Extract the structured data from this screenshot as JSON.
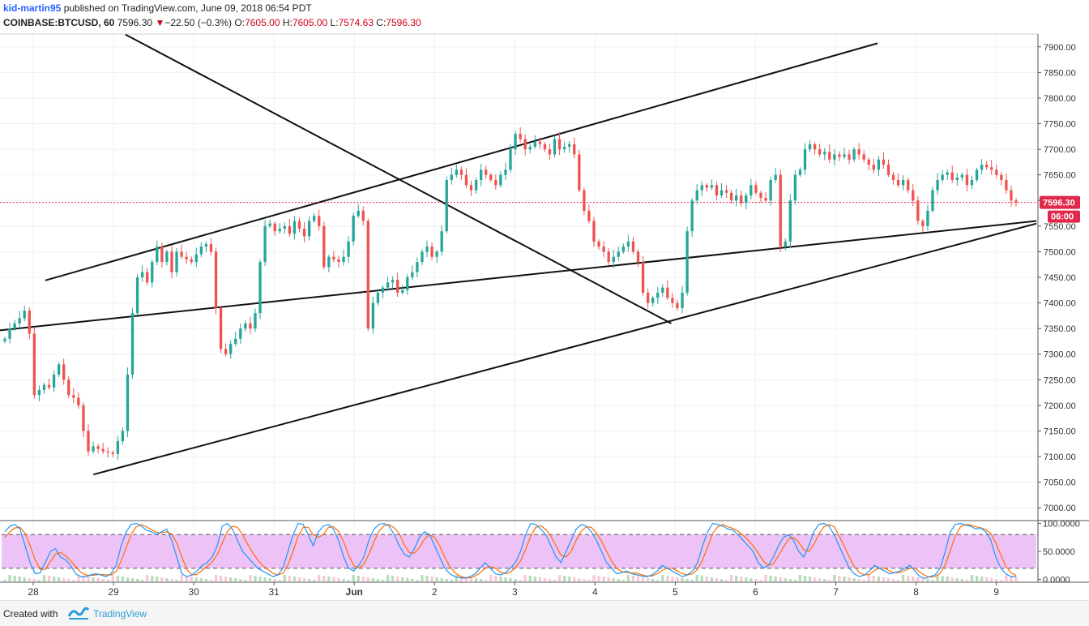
{
  "header": {
    "author": "kid-martin95",
    "published_text": "published on TradingView.com, June 09, 2018 06:54 PDT",
    "symbol": "COINBASE:BTCUSD, 60",
    "last": "7596.30",
    "change_arrow": "▼",
    "change": "−22.50 (−0.3%)",
    "o_label": "O:",
    "o_value": "7605.00",
    "h_label": "H:",
    "h_value": "7605.00",
    "l_label": "L:",
    "l_value": "7574.63",
    "c_label": "C:",
    "c_value": "7596.30"
  },
  "footer": {
    "created_with": "Created with",
    "brand": "TradingView"
  },
  "colors": {
    "up": "#26a69a",
    "down": "#ef5350",
    "stoch_k": "#2196f3",
    "stoch_d": "#ff6d00",
    "band": "#e9b4f5",
    "price_tag": "#e0294a"
  },
  "chart_data": [
    {
      "type": "candlestick",
      "title": "COINBASE:BTCUSD, 60",
      "price_axis_ticks": [
        7000,
        7050,
        7100,
        7150,
        7200,
        7250,
        7300,
        7350,
        7400,
        7450,
        7500,
        7550,
        7600,
        7650,
        7700,
        7750,
        7800,
        7850,
        7900
      ],
      "price_axis_labels": [
        "7000.00",
        "7050.00",
        "7100.00",
        "7150.00",
        "7200.00",
        "7250.00",
        "7300.00",
        "7350.00",
        "7400.00",
        "7450.00",
        "7500.00",
        "7550.00",
        "7600.00",
        "7650.00",
        "7700.00",
        "7750.00",
        "7800.00",
        "7850.00",
        "7900.00"
      ],
      "ylim": [
        6975,
        7925
      ],
      "time_axis_labels": [
        "28",
        "29",
        "30",
        "31",
        "Jun",
        "2",
        "3",
        "4",
        "5",
        "6",
        "7",
        "8",
        "9"
      ],
      "last_price_label": "7596.30",
      "countdown_label": "06:00",
      "last_price": 7596.3,
      "trendlines": [
        {
          "name": "channel-upper",
          "from": [
            0.15,
            7444
          ],
          "to": [
            10.52,
            7907
          ]
        },
        {
          "name": "channel-middle",
          "from": [
            -0.5,
            7345
          ],
          "to": [
            12.5,
            7560
          ]
        },
        {
          "name": "channel-lower",
          "from": [
            0.75,
            7065
          ],
          "to": [
            12.5,
            7555
          ]
        },
        {
          "name": "descending-line",
          "from": [
            1.15,
            7924
          ],
          "to": [
            7.95,
            7360
          ]
        }
      ],
      "closes": [
        7330,
        7350,
        7360,
        7370,
        7385,
        7340,
        7220,
        7230,
        7240,
        7235,
        7260,
        7280,
        7250,
        7220,
        7215,
        7200,
        7150,
        7110,
        7120,
        7115,
        7110,
        7108,
        7105,
        7130,
        7150,
        7260,
        7380,
        7450,
        7460,
        7440,
        7480,
        7510,
        7480,
        7500,
        7460,
        7500,
        7490,
        7485,
        7480,
        7495,
        7510,
        7515,
        7500,
        7390,
        7310,
        7300,
        7320,
        7330,
        7350,
        7360,
        7350,
        7380,
        7480,
        7550,
        7555,
        7540,
        7545,
        7550,
        7535,
        7560,
        7545,
        7530,
        7560,
        7570,
        7550,
        7470,
        7490,
        7485,
        7480,
        7490,
        7520,
        7570,
        7580,
        7560,
        7350,
        7400,
        7420,
        7430,
        7440,
        7445,
        7420,
        7425,
        7450,
        7460,
        7480,
        7500,
        7510,
        7490,
        7500,
        7540,
        7640,
        7650,
        7660,
        7650,
        7630,
        7620,
        7640,
        7660,
        7650,
        7640,
        7630,
        7650,
        7660,
        7700,
        7730,
        7720,
        7700,
        7705,
        7715,
        7710,
        7700,
        7690,
        7720,
        7700,
        7705,
        7710,
        7690,
        7620,
        7580,
        7560,
        7520,
        7510,
        7500,
        7480,
        7490,
        7500,
        7510,
        7520,
        7500,
        7480,
        7420,
        7400,
        7410,
        7420,
        7430,
        7410,
        7400,
        7390,
        7420,
        7540,
        7600,
        7620,
        7630,
        7625,
        7630,
        7610,
        7620,
        7615,
        7600,
        7610,
        7595,
        7610,
        7630,
        7615,
        7605,
        7600,
        7640,
        7650,
        7510,
        7520,
        7600,
        7650,
        7660,
        7700,
        7710,
        7700,
        7690,
        7695,
        7680,
        7690,
        7685,
        7690,
        7680,
        7700,
        7690,
        7680,
        7670,
        7660,
        7680,
        7670,
        7650,
        7640,
        7630,
        7640,
        7620,
        7600,
        7560,
        7550,
        7580,
        7620,
        7640,
        7650,
        7655,
        7640,
        7645,
        7650,
        7630,
        7640,
        7660,
        7670,
        7665,
        7660,
        7650,
        7640,
        7620,
        7600,
        7596.3
      ]
    },
    {
      "type": "line",
      "title": "Stochastic RSI",
      "ylim": [
        -5,
        105
      ],
      "axis_labels": [
        "100.0000",
        "50.0000",
        "0.0000"
      ],
      "axis_values": [
        100,
        50,
        0
      ],
      "band": [
        20,
        80
      ],
      "series": [
        {
          "values": [
            85,
            95,
            98,
            90,
            60,
            30,
            10,
            12,
            30,
            50,
            55,
            40,
            35,
            25,
            10,
            5,
            5,
            8,
            10,
            8,
            5,
            10,
            25,
            60,
            85,
            98,
            100,
            95,
            88,
            85,
            80,
            85,
            90,
            70,
            40,
            10,
            5,
            8,
            15,
            25,
            30,
            40,
            60,
            95,
            100,
            90,
            70,
            50,
            40,
            30,
            20,
            15,
            10,
            5,
            8,
            20,
            50,
            80,
            100,
            98,
            80,
            60,
            85,
            95,
            98,
            90,
            70,
            40,
            20,
            15,
            25,
            40,
            70,
            90,
            98,
            100,
            95,
            80,
            60,
            45,
            40,
            55,
            75,
            85,
            80,
            60,
            40,
            20,
            10,
            5,
            3,
            2,
            5,
            10,
            20,
            30,
            20,
            10,
            8,
            12,
            20,
            30,
            50,
            80,
            100,
            98,
            90,
            80,
            60,
            40,
            30,
            50,
            70,
            90,
            98,
            95,
            85,
            70,
            50,
            30,
            20,
            10,
            12,
            15,
            10,
            8,
            6,
            5,
            8,
            15,
            25,
            20,
            15,
            10,
            5,
            8,
            15,
            30,
            60,
            85,
            100,
            98,
            95,
            90,
            88,
            80,
            70,
            60,
            50,
            30,
            20,
            25,
            40,
            60,
            75,
            80,
            70,
            50,
            40,
            60,
            85,
            98,
            100,
            95,
            80,
            60,
            40,
            20,
            10,
            5,
            8,
            15,
            25,
            20,
            15,
            10,
            12,
            15,
            20,
            25,
            15,
            5,
            2,
            5,
            8,
            20,
            50,
            85,
            98,
            100,
            97,
            95,
            90,
            92,
            85,
            70,
            40,
            20,
            10,
            5,
            5
          ]
        },
        {
          "values": [
            75,
            85,
            92,
            93,
            82,
            60,
            35,
            18,
            18,
            32,
            45,
            48,
            42,
            33,
            23,
            13,
            8,
            7,
            8,
            9,
            8,
            8,
            14,
            33,
            57,
            81,
            94,
            98,
            94,
            89,
            84,
            83,
            85,
            81,
            65,
            40,
            18,
            8,
            9,
            16,
            23,
            31,
            44,
            65,
            85,
            95,
            93,
            80,
            63,
            48,
            35,
            25,
            18,
            11,
            8,
            11,
            26,
            50,
            77,
            93,
            93,
            80,
            75,
            80,
            93,
            94,
            86,
            67,
            43,
            25,
            20,
            27,
            45,
            67,
            86,
            96,
            98,
            92,
            82,
            62,
            48,
            47,
            57,
            72,
            80,
            75,
            60,
            40,
            23,
            12,
            6,
            3,
            3,
            6,
            12,
            20,
            23,
            20,
            13,
            10,
            13,
            21,
            33,
            53,
            77,
            93,
            96,
            89,
            77,
            60,
            43,
            40,
            50,
            70,
            86,
            94,
            93,
            83,
            68,
            50,
            33,
            20,
            14,
            12,
            12,
            11,
            8,
            6,
            6,
            10,
            16,
            20,
            20,
            15,
            10,
            8,
            10,
            18,
            35,
            58,
            82,
            94,
            98,
            94,
            91,
            86,
            79,
            70,
            60,
            47,
            33,
            25,
            28,
            42,
            58,
            72,
            75,
            67,
            53,
            50,
            62,
            81,
            94,
            98,
            94,
            78,
            60,
            40,
            23,
            12,
            8,
            9,
            16,
            20,
            20,
            15,
            12,
            12,
            16,
            20,
            20,
            13,
            7,
            4,
            5,
            11,
            26,
            52,
            78,
            94,
            98,
            97,
            94,
            92,
            89,
            82,
            65,
            43,
            23,
            12,
            7
          ]
        }
      ]
    }
  ]
}
